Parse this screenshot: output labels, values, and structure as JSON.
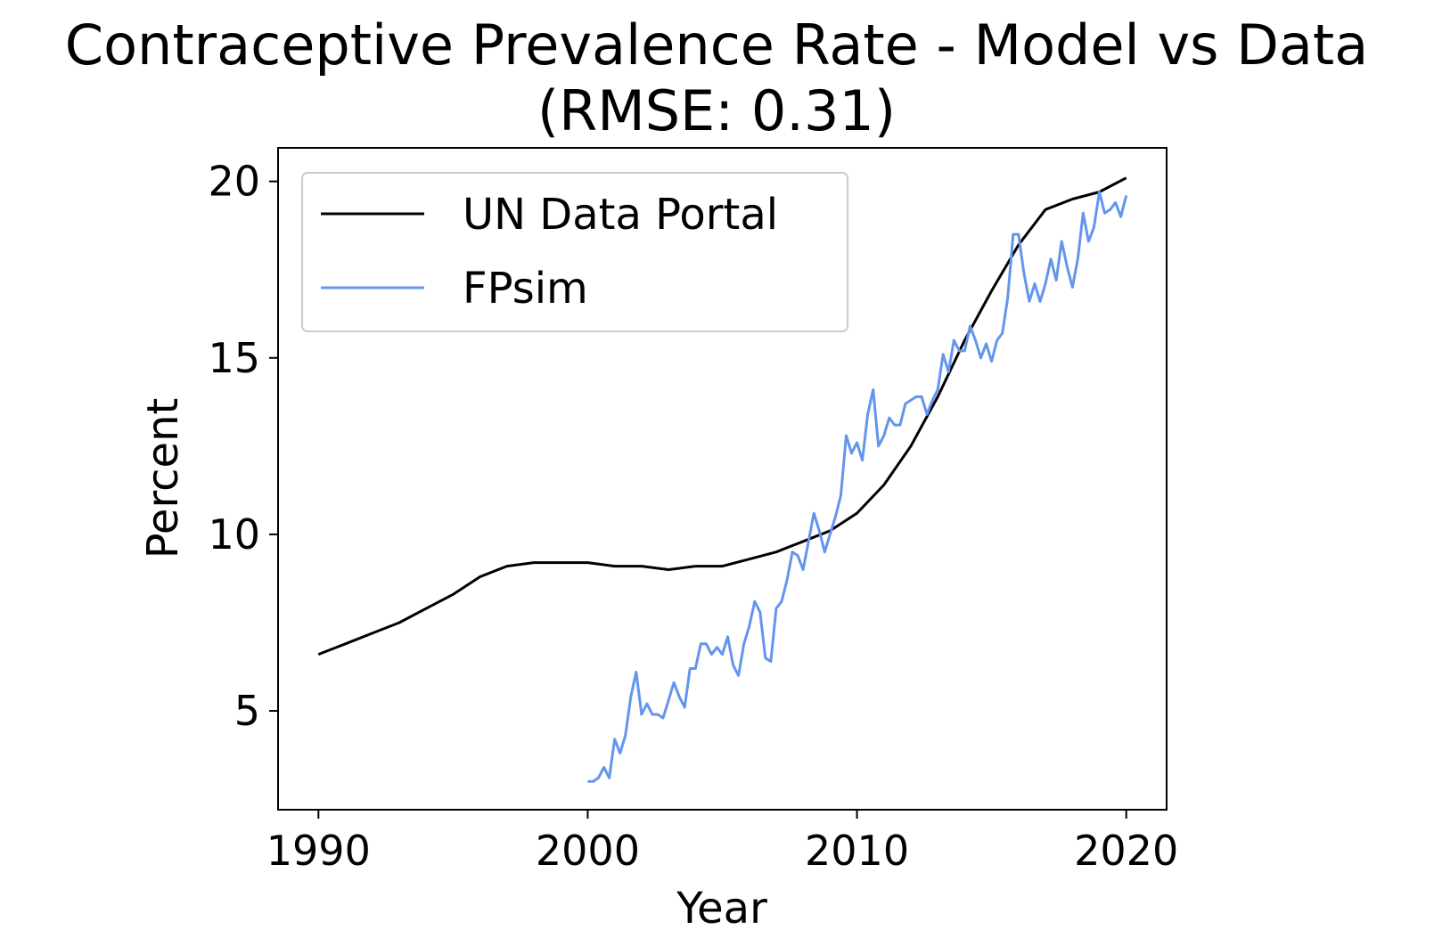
{
  "chart_data": {
    "type": "line",
    "title": "Contraceptive Prevalence Rate - Model vs Data",
    "subtitle": "(RMSE: 0.31)",
    "xlabel": "Year",
    "ylabel": "Percent",
    "xlim": [
      1988.5,
      2021.5
    ],
    "ylim": [
      2.2,
      20.95
    ],
    "xticks": [
      1990,
      2000,
      2010,
      2020
    ],
    "yticks": [
      5,
      10,
      15,
      20
    ],
    "grid": false,
    "legend_position": "top-left",
    "series": [
      {
        "name": "UN Data Portal",
        "color": "#000000",
        "x": [
          1990,
          1991,
          1992,
          1993,
          1994,
          1995,
          1996,
          1997,
          1998,
          1999,
          2000,
          2001,
          2002,
          2003,
          2004,
          2005,
          2006,
          2007,
          2008,
          2009,
          2010,
          2011,
          2012,
          2013,
          2014,
          2015,
          2016,
          2017,
          2018,
          2019,
          2020
        ],
        "y": [
          6.6,
          6.9,
          7.2,
          7.5,
          7.9,
          8.3,
          8.8,
          9.1,
          9.2,
          9.2,
          9.2,
          9.1,
          9.1,
          9.0,
          9.1,
          9.1,
          9.3,
          9.5,
          9.8,
          10.1,
          10.6,
          11.4,
          12.5,
          13.9,
          15.5,
          16.9,
          18.2,
          19.2,
          19.5,
          19.7,
          20.1
        ]
      },
      {
        "name": "FPsim",
        "color": "#6495ED",
        "x": [
          2000.0,
          2000.2,
          2000.4,
          2000.6,
          2000.8,
          2001.0,
          2001.2,
          2001.4,
          2001.6,
          2001.8,
          2002.0,
          2002.2,
          2002.4,
          2002.6,
          2002.8,
          2003.0,
          2003.2,
          2003.4,
          2003.6,
          2003.8,
          2004.0,
          2004.2,
          2004.4,
          2004.6,
          2004.8,
          2005.0,
          2005.2,
          2005.4,
          2005.6,
          2005.8,
          2006.0,
          2006.2,
          2006.4,
          2006.6,
          2006.8,
          2007.0,
          2007.2,
          2007.4,
          2007.6,
          2007.8,
          2008.0,
          2008.2,
          2008.4,
          2008.6,
          2008.8,
          2009.0,
          2009.2,
          2009.4,
          2009.6,
          2009.8,
          2010.0,
          2010.2,
          2010.4,
          2010.6,
          2010.8,
          2011.0,
          2011.2,
          2011.4,
          2011.6,
          2011.8,
          2012.0,
          2012.2,
          2012.4,
          2012.6,
          2012.8,
          2013.0,
          2013.2,
          2013.4,
          2013.6,
          2013.8,
          2014.0,
          2014.2,
          2014.4,
          2014.6,
          2014.8,
          2015.0,
          2015.2,
          2015.4,
          2015.6,
          2015.8,
          2016.0,
          2016.2,
          2016.4,
          2016.6,
          2016.8,
          2017.0,
          2017.2,
          2017.4,
          2017.6,
          2017.8,
          2018.0,
          2018.2,
          2018.4,
          2018.6,
          2018.8,
          2019.0,
          2019.2,
          2019.4,
          2019.6,
          2019.8,
          2020.0
        ],
        "y": [
          3.0,
          3.0,
          3.1,
          3.4,
          3.1,
          4.2,
          3.8,
          4.3,
          5.4,
          6.1,
          4.9,
          5.2,
          4.9,
          4.9,
          4.8,
          5.3,
          5.8,
          5.4,
          5.1,
          6.2,
          6.2,
          6.9,
          6.9,
          6.6,
          6.8,
          6.6,
          7.1,
          6.3,
          6.0,
          6.9,
          7.4,
          8.1,
          7.8,
          6.5,
          6.4,
          7.9,
          8.1,
          8.7,
          9.5,
          9.4,
          9.0,
          9.8,
          10.6,
          10.1,
          9.5,
          10.0,
          10.5,
          11.1,
          12.8,
          12.3,
          12.6,
          12.1,
          13.4,
          14.1,
          12.5,
          12.8,
          13.3,
          13.1,
          13.1,
          13.7,
          13.8,
          13.9,
          13.9,
          13.4,
          13.8,
          14.1,
          15.1,
          14.6,
          15.5,
          15.2,
          15.2,
          15.9,
          15.5,
          15.0,
          15.4,
          14.9,
          15.5,
          15.7,
          16.7,
          18.5,
          18.5,
          17.4,
          16.6,
          17.1,
          16.6,
          17.1,
          17.8,
          17.2,
          18.3,
          17.6,
          17.0,
          17.8,
          19.1,
          18.3,
          18.7,
          19.7,
          19.1,
          19.2,
          19.4,
          19.0,
          19.6
        ]
      }
    ]
  }
}
